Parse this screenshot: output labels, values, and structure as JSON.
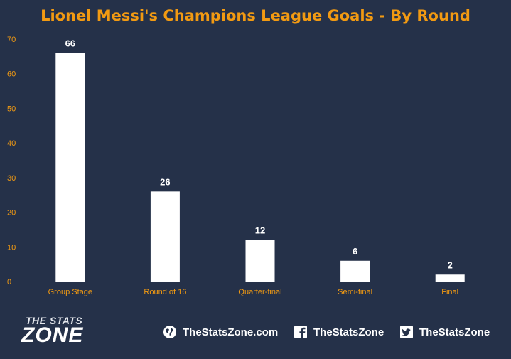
{
  "title": "Lionel Messi's Champions League Goals - By Round",
  "colors": {
    "background": "#253149",
    "title": "#f29a12",
    "axis_text": "#f29a12",
    "category_text": "#f29a12",
    "bar": "#ffffff",
    "value_label": "#ffffff"
  },
  "chart_data": {
    "type": "bar",
    "title": "Lionel Messi's Champions League Goals - By Round",
    "xlabel": "",
    "ylabel": "",
    "categories": [
      "Group Stage",
      "Round of 16",
      "Quarter-final",
      "Semi-final",
      "Final"
    ],
    "values": [
      66,
      26,
      12,
      6,
      2
    ],
    "ylim": [
      0,
      70
    ],
    "yticks": [
      0,
      10,
      20,
      30,
      40,
      50,
      60,
      70
    ],
    "data_labels": [
      "66",
      "26",
      "12",
      "6",
      "2"
    ],
    "grid": false,
    "legend": "none"
  },
  "footer": {
    "logo": {
      "line1": "THE STATS",
      "line2": "ZONE"
    },
    "website": {
      "icon": "globe-icon",
      "text": "TheStatsZone.com"
    },
    "facebook": {
      "icon": "facebook-icon",
      "text": "TheStatsZone"
    },
    "twitter": {
      "icon": "twitter-icon",
      "text": "TheStatsZone"
    }
  }
}
